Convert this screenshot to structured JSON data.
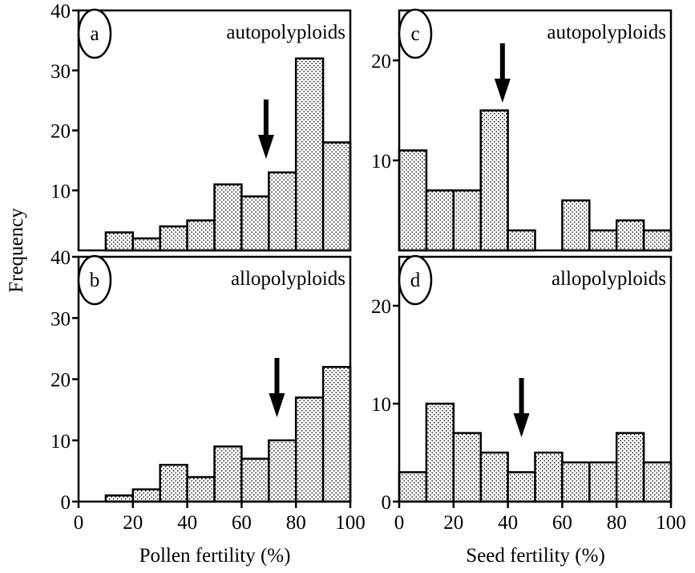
{
  "figure": {
    "ylabel": "Frequency",
    "xlabel_left": "Pollen fertility (%)",
    "xlabel_right": "Seed fertility (%)"
  },
  "chart_data": [
    {
      "type": "bar",
      "panel_letter": "a",
      "title": "autopolyploids",
      "xlabel": "Pollen fertility (%)",
      "ylabel": "Frequency",
      "bin_edges": [
        10,
        20,
        30,
        40,
        50,
        60,
        70,
        80,
        90,
        100
      ],
      "values": [
        3,
        2,
        4,
        5,
        11,
        9,
        13,
        32,
        18
      ],
      "xlim": [
        0,
        100
      ],
      "ylim": [
        0,
        40
      ],
      "yticks": [
        10,
        20,
        30,
        40
      ],
      "xticks": [],
      "arrow_x": 69
    },
    {
      "type": "bar",
      "panel_letter": "b",
      "title": "allopolyploids",
      "xlabel": "Pollen fertility (%)",
      "ylabel": "Frequency",
      "bin_edges": [
        10,
        20,
        30,
        40,
        50,
        60,
        70,
        80,
        90,
        100
      ],
      "values": [
        1,
        2,
        6,
        4,
        9,
        7,
        10,
        17,
        22
      ],
      "xlim": [
        0,
        100
      ],
      "ylim": [
        0,
        40
      ],
      "yticks": [
        0,
        10,
        20,
        30,
        40
      ],
      "xticks": [
        0,
        20,
        40,
        60,
        80,
        100
      ],
      "arrow_x": 73
    },
    {
      "type": "bar",
      "panel_letter": "c",
      "title": "autopolyploids",
      "xlabel": "Seed fertility (%)",
      "ylabel": "Frequency",
      "bin_edges": [
        0,
        10,
        20,
        30,
        40,
        50,
        60,
        70,
        80,
        90,
        100
      ],
      "values": [
        11,
        7,
        7,
        15,
        3,
        0,
        6,
        3,
        4,
        3
      ],
      "xlim": [
        0,
        100
      ],
      "ylim": [
        1,
        25
      ],
      "yticks": [
        10,
        20
      ],
      "xticks": [],
      "arrow_x": 38
    },
    {
      "type": "bar",
      "panel_letter": "d",
      "title": "allopolyploids",
      "xlabel": "Seed fertility (%)",
      "ylabel": "Frequency",
      "bin_edges": [
        0,
        10,
        20,
        30,
        40,
        50,
        60,
        70,
        80,
        90,
        100
      ],
      "values": [
        3,
        10,
        7,
        5,
        3,
        5,
        4,
        4,
        7,
        4
      ],
      "xlim": [
        0,
        100
      ],
      "ylim": [
        0,
        25
      ],
      "yticks": [
        0,
        10,
        20
      ],
      "xticks": [
        0,
        20,
        40,
        60,
        80,
        100
      ],
      "arrow_x": 45
    }
  ]
}
